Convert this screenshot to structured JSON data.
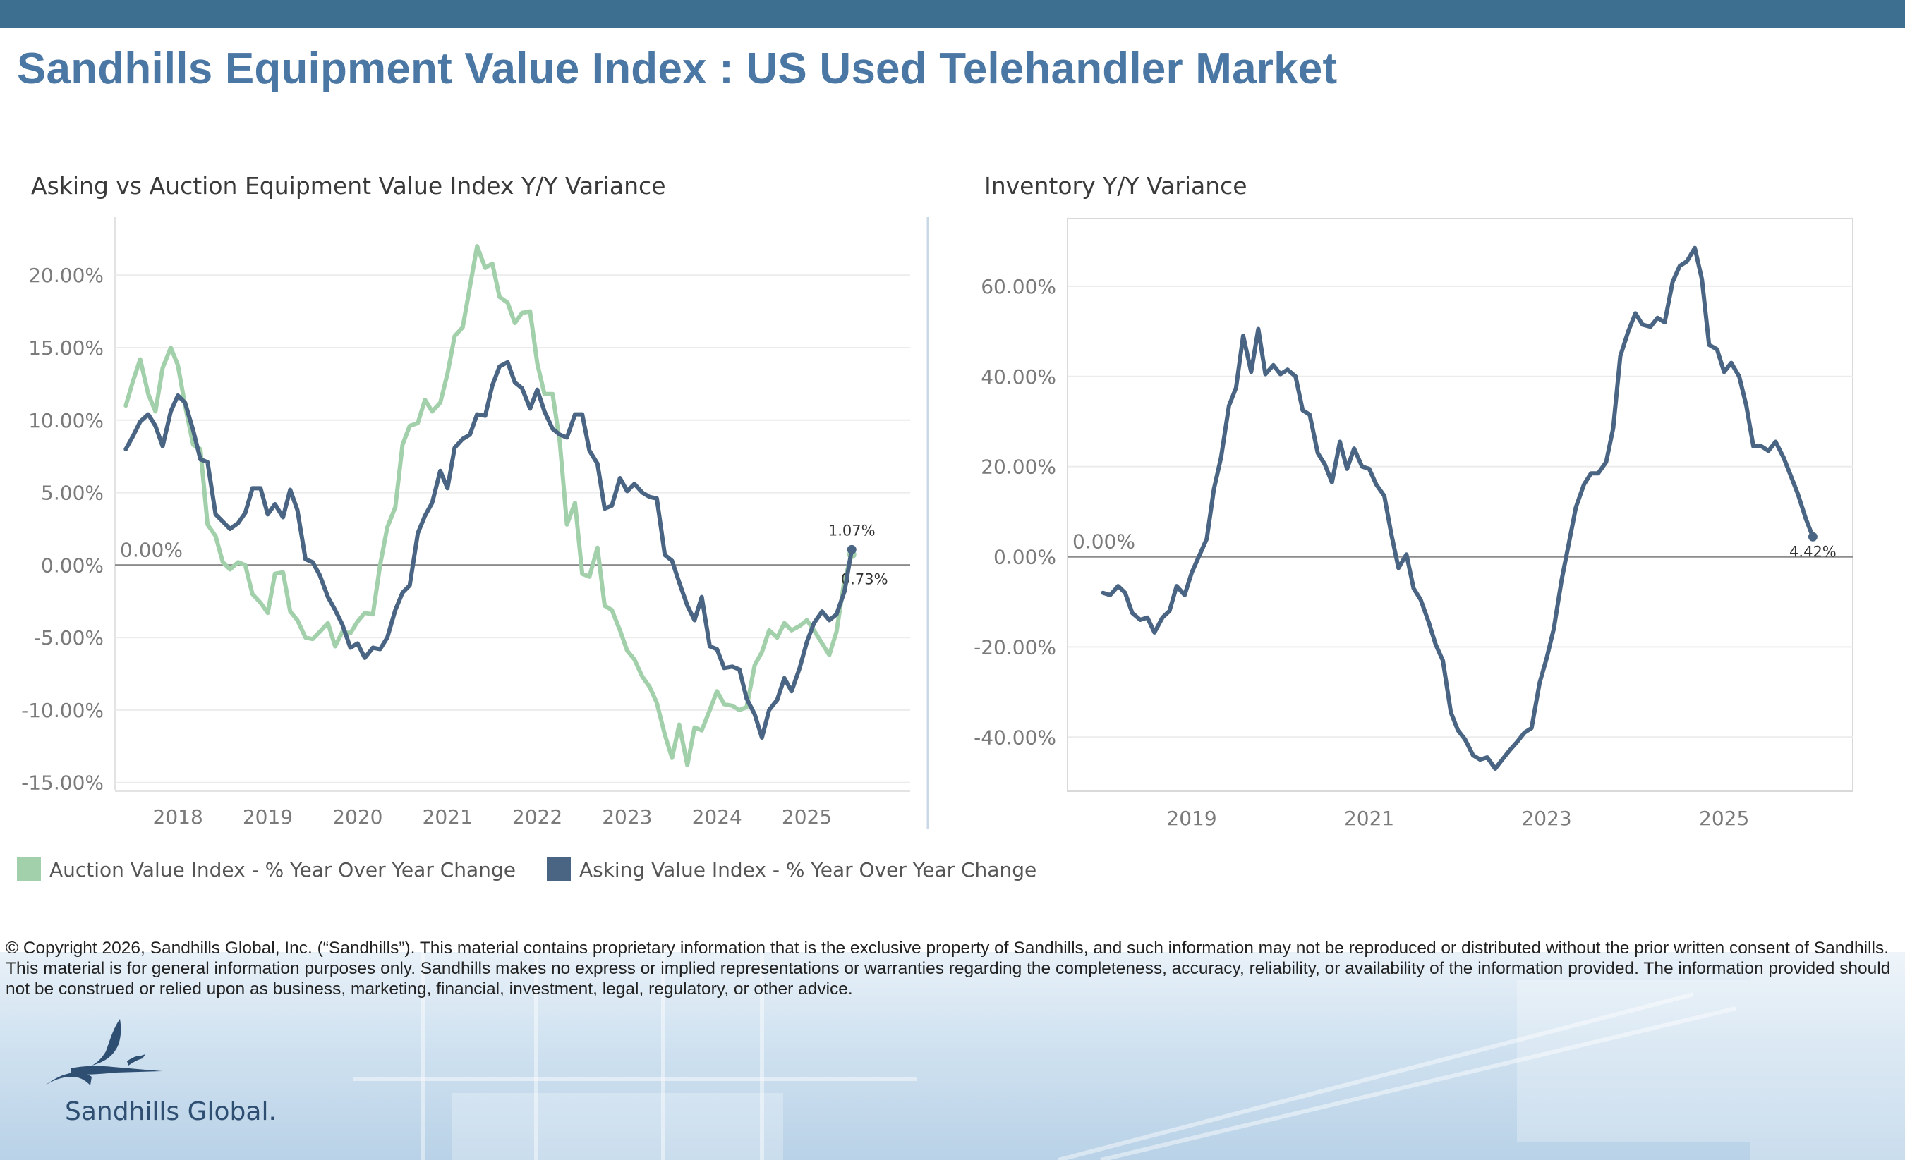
{
  "header": {
    "title": "Sandhills Equipment Value Index : US Used Telehandler Market"
  },
  "legend": {
    "auction": {
      "label": "Auction Value Index - % Year Over Year Change",
      "color": "#a2d0aa"
    },
    "asking": {
      "label": "Asking Value Index - % Year Over Year Change",
      "color": "#4a6584"
    }
  },
  "footer": {
    "copyright": "© Copyright 2026, Sandhills Global, Inc. (“Sandhills”). This material contains proprietary information that is the exclusive property of Sandhills, and such information may not be reproduced or distributed without the prior written consent of Sandhills. This material is for general information purposes only. Sandhills makes no express or implied representations or warranties regarding the completeness, accuracy, reliability, or availability of the information provided. The information provided should not be construed or relied upon as business, marketing, financial, investment, legal, regulatory, or other advice.",
    "logo_text": "Sandhills Global."
  },
  "colors": {
    "topbar": "#3d6f91",
    "title": "#4a77a3",
    "auction": "#a2d0aa",
    "asking": "#4a6584",
    "inventory": "#4a6584"
  },
  "chart_data": [
    {
      "type": "line",
      "title": "Asking vs Auction Equipment Value Index Y/Y Variance",
      "xlabel": "",
      "ylabel": "",
      "x_unit": "year (decimal)",
      "xlim": [
        2017.3,
        2026.15
      ],
      "ylim": [
        -15.5,
        24
      ],
      "yticks": [
        -15,
        -10,
        -5,
        0,
        5,
        10,
        15,
        20
      ],
      "ytick_labels": [
        "-15.00%",
        "-10.00%",
        "-5.00%",
        "0.00%",
        "5.00%",
        "10.00%",
        "15.00%",
        "20.00%"
      ],
      "xticks": [
        2018,
        2019,
        2020,
        2021,
        2022,
        2023,
        2024,
        2025
      ],
      "xtick_labels": [
        "2018",
        "2019",
        "2020",
        "2021",
        "2022",
        "2023",
        "2024",
        "2025"
      ],
      "reference_line": {
        "y": 0,
        "label": "0.00%"
      },
      "grid": "horizontal",
      "series": [
        {
          "name": "Auction Value Index - % Year Over Year Change",
          "color": "#a2d0aa",
          "x": [
            2017.42,
            2017.5,
            2017.58,
            2017.67,
            2017.75,
            2017.83,
            2017.92,
            2018.0,
            2018.08,
            2018.17,
            2018.25,
            2018.33,
            2018.42,
            2018.5,
            2018.58,
            2018.67,
            2018.75,
            2018.83,
            2018.92,
            2019.0,
            2019.08,
            2019.17,
            2019.25,
            2019.33,
            2019.42,
            2019.5,
            2019.58,
            2019.67,
            2019.75,
            2019.83,
            2019.92,
            2020.0,
            2020.08,
            2020.17,
            2020.25,
            2020.33,
            2020.42,
            2020.5,
            2020.58,
            2020.67,
            2020.75,
            2020.83,
            2020.92,
            2021.0,
            2021.08,
            2021.17,
            2021.25,
            2021.33,
            2021.42,
            2021.5,
            2021.58,
            2021.67,
            2021.75,
            2021.83,
            2021.92,
            2022.0,
            2022.08,
            2022.17,
            2022.25,
            2022.33,
            2022.42,
            2022.5,
            2022.58,
            2022.67,
            2022.75,
            2022.83,
            2022.92,
            2023.0,
            2023.08,
            2023.17,
            2023.25,
            2023.33,
            2023.42,
            2023.5,
            2023.58,
            2023.67,
            2023.75,
            2023.83,
            2023.92,
            2024.0,
            2024.08,
            2024.17,
            2024.25,
            2024.33,
            2024.42,
            2024.5,
            2024.58,
            2024.67,
            2024.75,
            2024.83,
            2024.92,
            2025.0,
            2025.08,
            2025.17,
            2025.25,
            2025.33,
            2025.42,
            2025.5
          ],
          "y": [
            11.0,
            12.7,
            14.2,
            11.8,
            10.6,
            13.6,
            15.0,
            13.8,
            11.0,
            8.3,
            8.0,
            2.8,
            2.0,
            0.2,
            -0.3,
            0.2,
            0.0,
            -2.0,
            -2.6,
            -3.3,
            -0.6,
            -0.5,
            -3.2,
            -3.8,
            -5.0,
            -5.1,
            -4.6,
            -4.0,
            -5.6,
            -4.6,
            -4.7,
            -3.9,
            -3.3,
            -3.4,
            0.0,
            2.6,
            4.0,
            8.3,
            9.6,
            9.8,
            11.4,
            10.6,
            11.2,
            13.2,
            15.8,
            16.4,
            19.2,
            22.0,
            20.5,
            20.8,
            18.5,
            18.1,
            16.7,
            17.4,
            17.5,
            13.9,
            11.8,
            11.8,
            8.5,
            2.8,
            4.3,
            -0.6,
            -0.8,
            1.2,
            -2.8,
            -3.1,
            -4.5,
            -5.9,
            -6.5,
            -7.7,
            -8.4,
            -9.5,
            -11.7,
            -13.3,
            -11.0,
            -13.8,
            -11.2,
            -11.4,
            -10.0,
            -8.7,
            -9.6,
            -9.7,
            -10.0,
            -9.8,
            -6.9,
            -6.0,
            -4.5,
            -5.0,
            -4.0,
            -4.5,
            -4.2,
            -3.8,
            -4.5,
            -5.4,
            -6.2,
            -4.6,
            -1.0,
            0.73
          ],
          "end_label": "0.73%"
        },
        {
          "name": "Asking Value Index - % Year Over Year Change",
          "color": "#4a6584",
          "x": [
            2017.42,
            2017.5,
            2017.58,
            2017.67,
            2017.75,
            2017.83,
            2017.92,
            2018.0,
            2018.08,
            2018.17,
            2018.25,
            2018.33,
            2018.42,
            2018.5,
            2018.58,
            2018.67,
            2018.75,
            2018.83,
            2018.92,
            2019.0,
            2019.08,
            2019.17,
            2019.25,
            2019.33,
            2019.42,
            2019.5,
            2019.58,
            2019.67,
            2019.75,
            2019.83,
            2019.92,
            2020.0,
            2020.08,
            2020.17,
            2020.25,
            2020.33,
            2020.42,
            2020.5,
            2020.58,
            2020.67,
            2020.75,
            2020.83,
            2020.92,
            2021.0,
            2021.08,
            2021.17,
            2021.25,
            2021.33,
            2021.42,
            2021.5,
            2021.58,
            2021.67,
            2021.75,
            2021.83,
            2021.92,
            2022.0,
            2022.08,
            2022.17,
            2022.25,
            2022.33,
            2022.42,
            2022.5,
            2022.58,
            2022.67,
            2022.75,
            2022.83,
            2022.92,
            2023.0,
            2023.08,
            2023.17,
            2023.25,
            2023.33,
            2023.42,
            2023.5,
            2023.58,
            2023.67,
            2023.75,
            2023.83,
            2023.92,
            2024.0,
            2024.08,
            2024.17,
            2024.25,
            2024.33,
            2024.42,
            2024.5,
            2024.58,
            2024.67,
            2024.75,
            2024.83,
            2024.92,
            2025.0,
            2025.08,
            2025.17,
            2025.25,
            2025.33,
            2025.42,
            2025.5
          ],
          "y": [
            8.0,
            8.9,
            9.9,
            10.4,
            9.6,
            8.2,
            10.6,
            11.7,
            11.2,
            9.3,
            7.3,
            7.1,
            3.5,
            3.0,
            2.5,
            2.9,
            3.6,
            5.3,
            5.3,
            3.5,
            4.2,
            3.3,
            5.2,
            3.8,
            0.4,
            0.2,
            -0.7,
            -2.2,
            -3.1,
            -4.1,
            -5.7,
            -5.4,
            -6.4,
            -5.7,
            -5.8,
            -5.0,
            -3.1,
            -1.9,
            -1.4,
            2.2,
            3.4,
            4.3,
            6.5,
            5.3,
            8.1,
            8.7,
            9.0,
            10.4,
            10.3,
            12.4,
            13.7,
            14.0,
            12.6,
            12.2,
            10.8,
            12.1,
            10.6,
            9.4,
            9.0,
            8.8,
            10.4,
            10.4,
            7.9,
            7.0,
            3.9,
            4.1,
            6.0,
            5.1,
            5.6,
            5.0,
            4.7,
            4.6,
            0.7,
            0.3,
            -1.2,
            -2.8,
            -3.8,
            -2.2,
            -5.6,
            -5.8,
            -7.1,
            -7.0,
            -7.2,
            -9.2,
            -10.3,
            -11.9,
            -10.0,
            -9.3,
            -7.8,
            -8.7,
            -7.1,
            -5.3,
            -4.0,
            -3.2,
            -3.8,
            -3.4,
            -1.8,
            1.07
          ],
          "end_label": "1.07%"
        }
      ]
    },
    {
      "type": "line",
      "title": "Inventory Y/Y Variance",
      "xlabel": "",
      "ylabel": "",
      "x_unit": "year (decimal)",
      "xlim": [
        2017.6,
        2026.45
      ],
      "ylim": [
        -52,
        75
      ],
      "yticks": [
        -40,
        -20,
        0,
        20,
        40,
        60
      ],
      "ytick_labels": [
        "-40.00%",
        "-20.00%",
        "0.00%",
        "20.00%",
        "40.00%",
        "60.00%"
      ],
      "xticks": [
        2019,
        2021,
        2023,
        2025
      ],
      "xtick_labels": [
        "2019",
        "2021",
        "2023",
        "2025"
      ],
      "reference_line": {
        "y": 0,
        "label": "0.00%"
      },
      "grid": "horizontal",
      "series": [
        {
          "name": "",
          "color": "#4a6584",
          "x": [
            2018.0,
            2018.08,
            2018.17,
            2018.25,
            2018.33,
            2018.42,
            2018.5,
            2018.58,
            2018.67,
            2018.75,
            2018.83,
            2018.92,
            2019.0,
            2019.08,
            2019.17,
            2019.25,
            2019.33,
            2019.42,
            2019.5,
            2019.58,
            2019.67,
            2019.75,
            2019.83,
            2019.92,
            2020.0,
            2020.08,
            2020.17,
            2020.25,
            2020.33,
            2020.42,
            2020.5,
            2020.58,
            2020.67,
            2020.75,
            2020.83,
            2020.92,
            2021.0,
            2021.08,
            2021.17,
            2021.25,
            2021.33,
            2021.42,
            2021.5,
            2021.58,
            2021.67,
            2021.75,
            2021.83,
            2021.92,
            2022.0,
            2022.08,
            2022.17,
            2022.25,
            2022.33,
            2022.42,
            2022.5,
            2022.58,
            2022.67,
            2022.75,
            2022.83,
            2022.92,
            2023.0,
            2023.08,
            2023.17,
            2023.25,
            2023.33,
            2023.42,
            2023.5,
            2023.58,
            2023.67,
            2023.75,
            2023.83,
            2023.92,
            2024.0,
            2024.08,
            2024.17,
            2024.25,
            2024.33,
            2024.42,
            2024.5,
            2024.58,
            2024.67,
            2024.75,
            2024.83,
            2024.92,
            2025.0,
            2025.08,
            2025.17,
            2025.25,
            2025.33,
            2025.42,
            2025.5,
            2025.58,
            2025.67,
            2025.75,
            2025.83,
            2025.92,
            2026.0
          ],
          "y": [
            -8,
            -8.5,
            -6.5,
            -8,
            -12.5,
            -14,
            -13.5,
            -16.8,
            -13.5,
            -12,
            -6.5,
            -8.5,
            -3.5,
            0,
            4,
            15,
            22,
            33.5,
            37.5,
            49,
            41,
            50.5,
            40.5,
            42.5,
            40.5,
            41.5,
            40,
            32.5,
            31.5,
            23,
            20.5,
            16.5,
            25.5,
            19.5,
            24,
            20,
            19.5,
            16,
            13.5,
            5,
            -2.5,
            0.5,
            -7,
            -9.5,
            -14.5,
            -19.5,
            -23,
            -34.5,
            -38.5,
            -40.5,
            -44,
            -45,
            -44.5,
            -47,
            -45,
            -43,
            -41,
            -39,
            -38,
            -28,
            -22.5,
            -16,
            -5,
            3,
            11,
            16,
            18.5,
            18.5,
            21,
            28.5,
            44.5,
            50,
            54,
            51.5,
            51,
            53,
            52,
            61,
            64.5,
            65.5,
            68.5,
            61.5,
            47,
            46,
            41,
            43,
            40,
            33.5,
            24.5,
            24.5,
            23.5,
            25.5,
            22,
            18,
            14,
            8.5,
            4.42
          ],
          "end_label": "4.42%"
        }
      ]
    }
  ]
}
